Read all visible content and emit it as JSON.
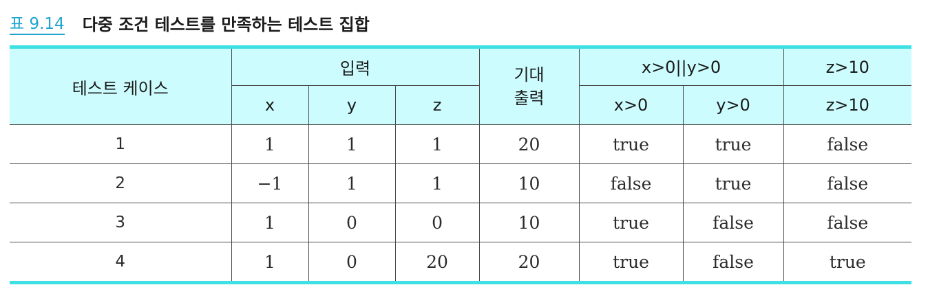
{
  "caption": {
    "label": "표 9.14",
    "title": "다중 조건 테스트를 만족하는 테스트 집합"
  },
  "colors": {
    "accent": "#1fa4d0",
    "header_bg": "#ccfcfd",
    "rule": "#3ee0e4"
  },
  "table": {
    "headers": {
      "test_case": "테스트 케이스",
      "input": "입력",
      "expected_line1": "기대",
      "expected_line2": "출력",
      "cond_or": "x>0||y>0",
      "cond_z": "z>10",
      "x": "x",
      "y": "y",
      "z": "z",
      "x_gt0": "x>0",
      "y_gt0": "y>0",
      "z_gt10": "z>10"
    },
    "rows": [
      {
        "case": "1",
        "x": "1",
        "y": "1",
        "z": "1",
        "expected": "20",
        "x_gt0": "true",
        "y_gt0": "true",
        "z_gt10": "false"
      },
      {
        "case": "2",
        "x": "−1",
        "y": "1",
        "z": "1",
        "expected": "10",
        "x_gt0": "false",
        "y_gt0": "true",
        "z_gt10": "false"
      },
      {
        "case": "3",
        "x": "1",
        "y": "0",
        "z": "0",
        "expected": "10",
        "x_gt0": "true",
        "y_gt0": "false",
        "z_gt10": "false"
      },
      {
        "case": "4",
        "x": "1",
        "y": "0",
        "z": "20",
        "expected": "20",
        "x_gt0": "true",
        "y_gt0": "false",
        "z_gt10": "true"
      }
    ]
  }
}
